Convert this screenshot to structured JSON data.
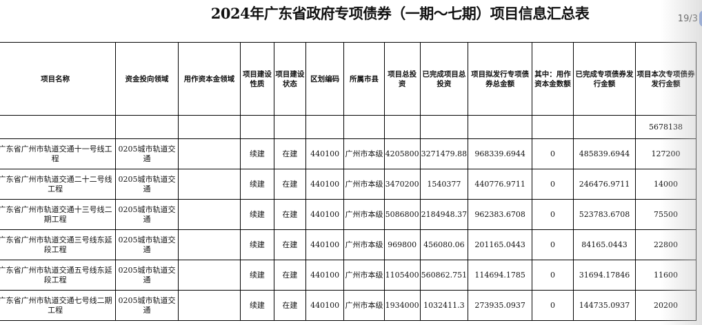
{
  "title": "2024年广东省政府专项债券（一期～七期）项目信息汇总表",
  "pager": {
    "label": "19/3"
  },
  "headers": [
    "项目名称",
    "资金投向领域",
    "用作资本金领域",
    "项目建设性质",
    "项目建设状态",
    "区划编码",
    "所属市县",
    "项目总投资",
    "已完成项目总投资",
    "项目拟发行专项债券总金额",
    "其中：用作资本金数额",
    "已完成专项债券发行金额",
    "项目本次专项债券发行金额"
  ],
  "total": {
    "value": "5678138"
  },
  "rows": [
    [
      "广东省广州市轨道交通十一号线工程",
      "0205城市轨道交通",
      "",
      "续建",
      "在建",
      "440100",
      "广州市本级",
      "4205800",
      "3271479.88",
      "968339.6944",
      "0",
      "485839.6944",
      "127200"
    ],
    [
      "广东省广州市轨道交通二十二号线工程",
      "0205城市轨道交通",
      "",
      "续建",
      "在建",
      "440100",
      "广州市本级",
      "3470200",
      "1540377",
      "440776.9711",
      "0",
      "246476.9711",
      "14000"
    ],
    [
      "广东省广州市轨道交通十三号线二期工程",
      "0205城市轨道交通",
      "",
      "续建",
      "在建",
      "440100",
      "广州市本级",
      "5086800",
      "2184948.37",
      "962383.6708",
      "0",
      "523783.6708",
      "75500"
    ],
    [
      "广东省广州市轨道交通三号线东延段工程",
      "0205城市轨道交通",
      "",
      "续建",
      "在建",
      "440100",
      "广州市本级",
      "969800",
      "456080.06",
      "201165.0443",
      "0",
      "84165.0443",
      "22800"
    ],
    [
      "广东省广州市轨道交通五号线东延段工程",
      "0205城市轨道交通",
      "",
      "续建",
      "在建",
      "440100",
      "广州市本级",
      "1105400",
      "560862.751",
      "114694.1785",
      "0",
      "31694.17846",
      "11600"
    ],
    [
      "广东省广州市轨道交通七号线二期工程",
      "0205城市轨道交通",
      "",
      "续建",
      "在建",
      "440100",
      "广州市本级",
      "1934000",
      "1032411.3",
      "273935.0937",
      "0",
      "144735.0937",
      "20200"
    ]
  ]
}
